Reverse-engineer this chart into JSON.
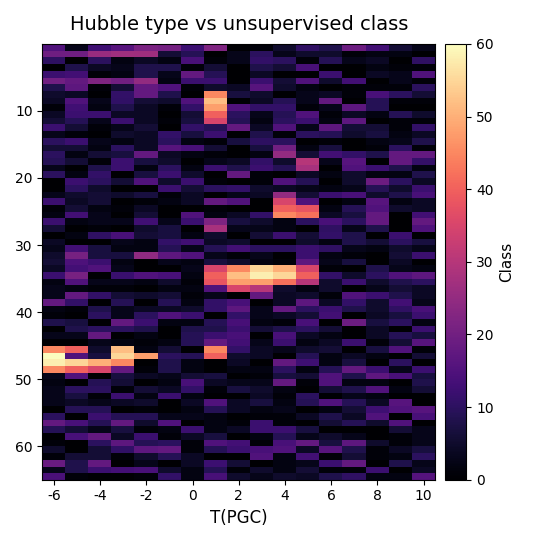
{
  "title": "Hubble type vs unsupervised class",
  "xlabel": "T(PGC)",
  "ylabel": "Class",
  "colorbar_label": "Class",
  "x_min": -6,
  "x_max": 10,
  "y_min": 0,
  "y_max": 65,
  "colorbar_min": 0,
  "colorbar_max": 60,
  "colorbar_ticks": [
    0,
    10,
    20,
    30,
    40,
    50,
    60
  ],
  "xticks": [
    -6,
    -4,
    -2,
    0,
    2,
    4,
    6,
    8,
    10
  ],
  "yticks": [
    10,
    20,
    30,
    40,
    50,
    60
  ],
  "cmap": "magma",
  "background": "black",
  "figsize": [
    5.37,
    5.42
  ],
  "dpi": 100,
  "seed": 42
}
